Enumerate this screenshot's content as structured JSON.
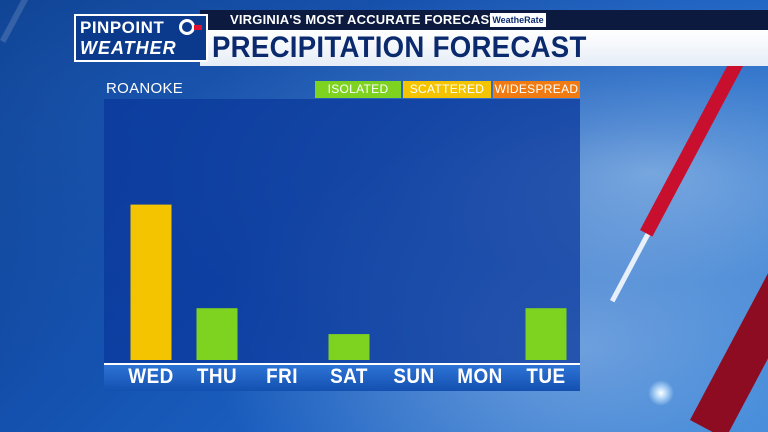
{
  "header": {
    "station_title": "VIRGINIA'S MOST ACCURATE FORECAST",
    "badge": "WeatheRate",
    "logo_line1": "PINPOINT",
    "logo_line2": "WEATHER",
    "title": "PRECIPITATION FORECAST"
  },
  "location": "ROANOKE",
  "legend": [
    {
      "label": "ISOLATED",
      "color": "#7ed321"
    },
    {
      "label": "SCATTERED",
      "color": "#f5c400"
    },
    {
      "label": "WIDESPREAD",
      "color": "#f07b12"
    }
  ],
  "chart_data": {
    "type": "bar",
    "categories": [
      "WED",
      "THU",
      "FRI",
      "SAT",
      "SUN",
      "MON",
      "TUE"
    ],
    "values": [
      3,
      1,
      0,
      0.5,
      0,
      0,
      1
    ],
    "coverage": [
      "SCATTERED",
      "ISOLATED",
      "",
      "ISOLATED",
      "",
      "",
      "ISOLATED"
    ],
    "ylim": [
      0,
      5
    ]
  },
  "colors": {
    "ISOLATED": "#7ed321",
    "SCATTERED": "#f5c400",
    "WIDESPREAD": "#f07b12"
  }
}
